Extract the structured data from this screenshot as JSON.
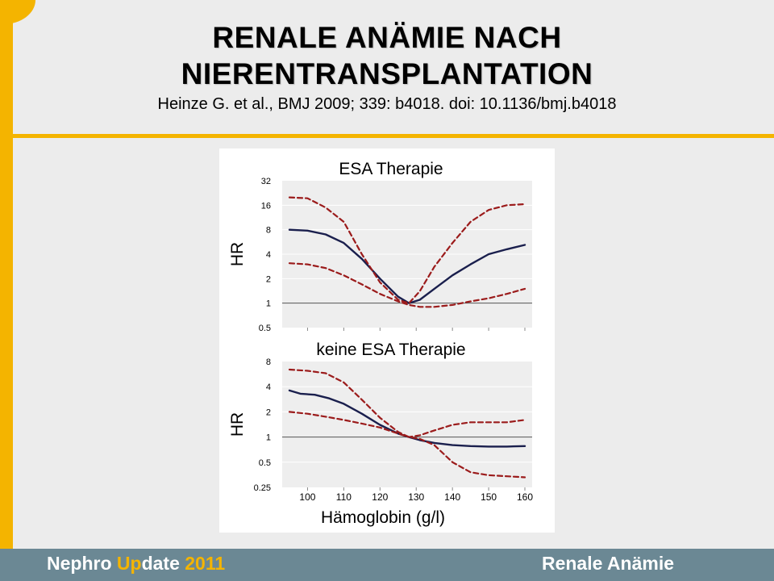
{
  "slide": {
    "title_line1": "RENALE ANÄMIE NACH",
    "title_line2": "NIERENTRANSPLANTATION",
    "citation": "Heinze G. et al., BMJ 2009; 339: b4018. doi: 10.1136/bmj.b4018"
  },
  "footer": {
    "brand_part1": "Nephro ",
    "brand_part2": "Up",
    "brand_part3": "date ",
    "brand_year": "2011",
    "topic": "Renale Anämie"
  },
  "colors": {
    "accent": "#f4b400",
    "footer_bg": "#6b8894",
    "estimate_line": "#1a1f4d",
    "ci_line": "#9b1b1b",
    "reference_line": "#555555",
    "plot_bg": "#eeeeee"
  },
  "chart_data": [
    {
      "type": "line",
      "title": "ESA Therapie",
      "ylabel": "HR",
      "xlabel": "",
      "y_scale": "log2",
      "ylim": [
        0.5,
        32
      ],
      "y_ticks": [
        0.5,
        1,
        2,
        4,
        8,
        16,
        32
      ],
      "y_tick_labels": [
        "0.5",
        "1",
        "2",
        "4",
        "8",
        "16",
        "32"
      ],
      "xlim": [
        93,
        162
      ],
      "reference_line": 1,
      "series": [
        {
          "style": "solid",
          "x": [
            95,
            100,
            105,
            110,
            115,
            120,
            125,
            128,
            131,
            135,
            140,
            145,
            150,
            155,
            160
          ],
          "y": [
            8,
            7.8,
            7,
            5.5,
            3.5,
            2,
            1.2,
            1,
            1.1,
            1.5,
            2.2,
            3,
            4,
            4.6,
            5.2
          ]
        },
        {
          "style": "dashed",
          "x": [
            95,
            100,
            105,
            110,
            115,
            120,
            125,
            128,
            131,
            135,
            140,
            145,
            150,
            155,
            160
          ],
          "y": [
            20,
            19.5,
            15,
            10,
            4,
            1.8,
            1.1,
            1,
            1.4,
            2.8,
            5.5,
            10,
            14,
            16,
            16.5
          ]
        },
        {
          "style": "dashed",
          "x": [
            95,
            100,
            105,
            110,
            115,
            120,
            125,
            128,
            131,
            135,
            140,
            145,
            150,
            155,
            160
          ],
          "y": [
            3.1,
            3,
            2.7,
            2.2,
            1.7,
            1.3,
            1.05,
            0.95,
            0.9,
            0.9,
            0.95,
            1.05,
            1.15,
            1.3,
            1.5
          ]
        }
      ]
    },
    {
      "type": "line",
      "title": "keine ESA Therapie",
      "ylabel": "HR",
      "xlabel": "Hämoglobin (g/l)",
      "y_scale": "log2",
      "ylim": [
        0.25,
        8
      ],
      "y_ticks": [
        0.25,
        0.5,
        1,
        2,
        4,
        8
      ],
      "y_tick_labels": [
        "0.25",
        "0.5",
        "1",
        "2",
        "4",
        "8"
      ],
      "xlim": [
        93,
        162
      ],
      "x_ticks": [
        100,
        110,
        120,
        130,
        140,
        150,
        160
      ],
      "x_tick_labels": [
        "100",
        "110",
        "120",
        "130",
        "140",
        "150",
        "160"
      ],
      "reference_line": 1,
      "series": [
        {
          "style": "solid",
          "x": [
            95,
            98,
            102,
            106,
            110,
            115,
            120,
            125,
            128,
            131,
            135,
            140,
            145,
            150,
            155,
            160
          ],
          "y": [
            3.6,
            3.3,
            3.2,
            2.9,
            2.5,
            1.9,
            1.4,
            1.1,
            1,
            0.92,
            0.85,
            0.8,
            0.78,
            0.77,
            0.77,
            0.78
          ]
        },
        {
          "style": "dashed",
          "x": [
            95,
            100,
            105,
            110,
            115,
            120,
            125,
            128,
            131,
            135,
            140,
            145,
            150,
            155,
            160
          ],
          "y": [
            6.4,
            6.2,
            5.8,
            4.5,
            2.8,
            1.7,
            1.15,
            1,
            0.95,
            0.8,
            0.5,
            0.38,
            0.35,
            0.34,
            0.33
          ]
        },
        {
          "style": "dashed",
          "x": [
            95,
            100,
            105,
            110,
            115,
            120,
            125,
            128,
            131,
            135,
            140,
            145,
            150,
            155,
            160
          ],
          "y": [
            2,
            1.9,
            1.75,
            1.6,
            1.45,
            1.3,
            1.1,
            1,
            1.05,
            1.2,
            1.4,
            1.5,
            1.5,
            1.5,
            1.6
          ]
        }
      ]
    }
  ]
}
